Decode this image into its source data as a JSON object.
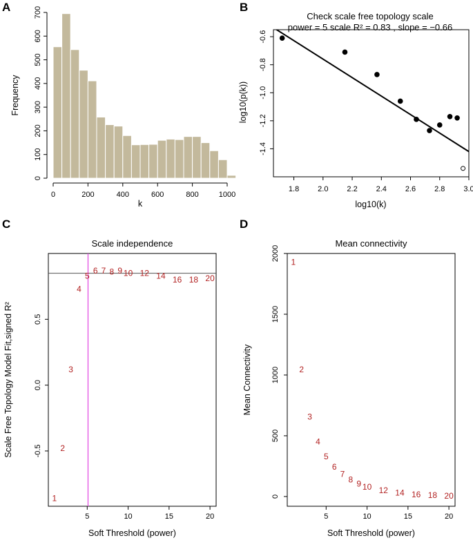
{
  "chart_data": [
    {
      "panel": "A",
      "type": "bar",
      "title": "",
      "xlabel": "k",
      "ylabel": "Frequency",
      "xlim": [
        0,
        1000
      ],
      "ylim": [
        0,
        700
      ],
      "bin_width": 50,
      "bin_start": 0,
      "values": [
        555,
        695,
        543,
        456,
        411,
        258,
        226,
        220,
        180,
        141,
        142,
        143,
        160,
        165,
        163,
        176,
        176,
        150,
        116,
        78,
        12
      ],
      "xticks": [
        "0",
        "200",
        "400",
        "600",
        "800",
        "1000"
      ],
      "yticks": [
        "0",
        "100",
        "200",
        "300",
        "400",
        "500",
        "600",
        "700"
      ],
      "bar_color": "#c3b99c"
    },
    {
      "panel": "B",
      "type": "scatter",
      "title": "Check scale free topology scale",
      "subtitle": "power = 5  scale R² = 0.83 , slope = −0.66",
      "xlabel": "log10(k)",
      "ylabel": "log10(p(k))",
      "xlim": [
        1.66,
        3.0
      ],
      "ylim": [
        -1.6,
        -0.55
      ],
      "points_filled": [
        [
          1.72,
          -0.61
        ],
        [
          2.15,
          -0.71
        ],
        [
          2.37,
          -0.87
        ],
        [
          2.53,
          -1.06
        ],
        [
          2.64,
          -1.19
        ],
        [
          2.73,
          -1.27
        ],
        [
          2.8,
          -1.23
        ],
        [
          2.87,
          -1.17
        ],
        [
          2.92,
          -1.18
        ]
      ],
      "points_open": [
        [
          2.96,
          -1.54
        ]
      ],
      "fit_line": {
        "intercept": 0.56,
        "slope": -0.66
      },
      "xticks": [
        "1.8",
        "2.0",
        "2.2",
        "2.4",
        "2.6",
        "2.8",
        "3.0"
      ],
      "yticks": [
        "-1.4",
        "-1.2",
        "-1.0",
        "-0.8",
        "-0.6"
      ]
    },
    {
      "panel": "C",
      "type": "scatter",
      "title": "Scale independence",
      "xlabel": "Soft Threshold (power)",
      "ylabel": "Scale Free Topology Model Fit,signed R²",
      "xlim": [
        0.25,
        20.75
      ],
      "ylim": [
        -0.92,
        1.0
      ],
      "points": [
        {
          "label": "1",
          "x": 1,
          "y": -0.86
        },
        {
          "label": "2",
          "x": 2,
          "y": -0.48
        },
        {
          "label": "3",
          "x": 3,
          "y": 0.12
        },
        {
          "label": "4",
          "x": 4,
          "y": 0.73
        },
        {
          "label": "5",
          "x": 5,
          "y": 0.83
        },
        {
          "label": "6",
          "x": 6,
          "y": 0.87
        },
        {
          "label": "7",
          "x": 7,
          "y": 0.87
        },
        {
          "label": "8",
          "x": 8,
          "y": 0.86
        },
        {
          "label": "9",
          "x": 9,
          "y": 0.87
        },
        {
          "label": "10",
          "x": 10,
          "y": 0.85
        },
        {
          "label": "12",
          "x": 12,
          "y": 0.85
        },
        {
          "label": "14",
          "x": 14,
          "y": 0.83
        },
        {
          "label": "16",
          "x": 16,
          "y": 0.8
        },
        {
          "label": "18",
          "x": 18,
          "y": 0.8
        },
        {
          "label": "20",
          "x": 20,
          "y": 0.81
        }
      ],
      "hline": 0.85,
      "vline": 5.1,
      "xticks": [
        "5",
        "10",
        "15",
        "20"
      ],
      "yticks": [
        "-0.5",
        "0.0",
        "0.5"
      ]
    },
    {
      "panel": "D",
      "type": "scatter",
      "title": "Mean connectivity",
      "xlabel": "Soft Threshold (power)",
      "ylabel": "Mean Connectivity",
      "xlim": [
        0.25,
        20.75
      ],
      "ylim": [
        -80,
        2000
      ],
      "points": [
        {
          "label": "1",
          "x": 1,
          "y": 1930
        },
        {
          "label": "2",
          "x": 2,
          "y": 1045
        },
        {
          "label": "3",
          "x": 3,
          "y": 655
        },
        {
          "label": "4",
          "x": 4,
          "y": 450
        },
        {
          "label": "5",
          "x": 5,
          "y": 328
        },
        {
          "label": "6",
          "x": 6,
          "y": 245
        },
        {
          "label": "7",
          "x": 7,
          "y": 185
        },
        {
          "label": "8",
          "x": 8,
          "y": 140
        },
        {
          "label": "9",
          "x": 9,
          "y": 105
        },
        {
          "label": "10",
          "x": 10,
          "y": 80
        },
        {
          "label": "12",
          "x": 12,
          "y": 50
        },
        {
          "label": "14",
          "x": 14,
          "y": 30
        },
        {
          "label": "16",
          "x": 16,
          "y": 18
        },
        {
          "label": "18",
          "x": 18,
          "y": 10
        },
        {
          "label": "20",
          "x": 20,
          "y": 5
        }
      ],
      "xticks": [
        "5",
        "10",
        "15",
        "20"
      ],
      "yticks": [
        "0",
        "500",
        "1000",
        "1500",
        "2000"
      ]
    }
  ],
  "colors": {
    "bar": "#c3b99c",
    "points_text": "#b22222",
    "vline": "#e040e0",
    "hline": "#555555"
  }
}
